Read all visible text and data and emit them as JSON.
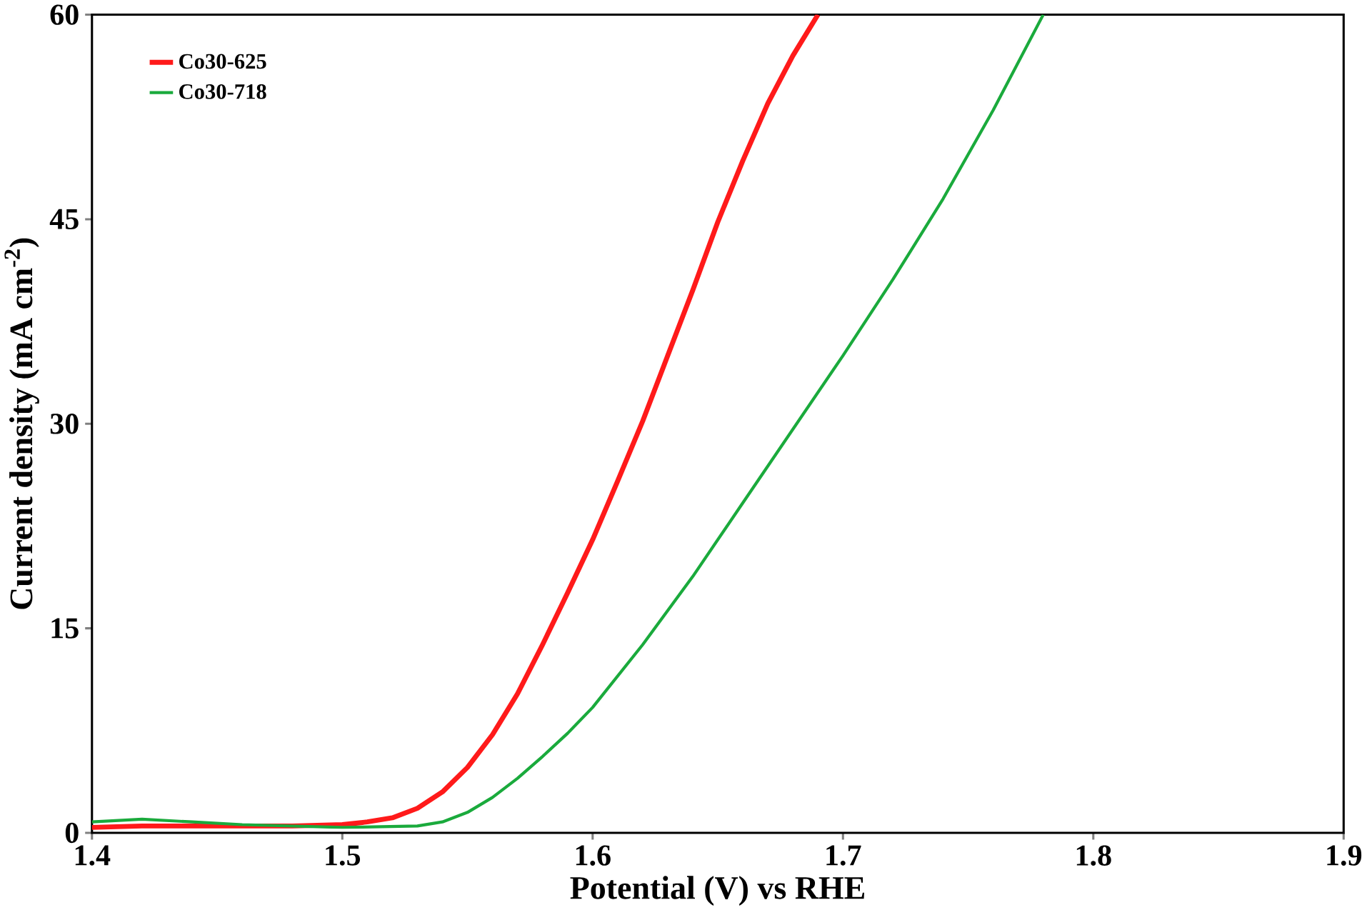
{
  "chart_data": {
    "type": "line",
    "xlabel": "Potential (V) vs RHE",
    "ylabel": "Current density (mA cm$^{-2}$)",
    "xlim": [
      1.4,
      1.9
    ],
    "ylim": [
      0,
      60
    ],
    "xticks": [
      1.4,
      1.5,
      1.6,
      1.7,
      1.8,
      1.9
    ],
    "yticks": [
      0,
      15,
      30,
      45,
      60
    ],
    "grid": false,
    "legend": "top left",
    "marker": "none",
    "line_style": "solid",
    "series": [
      {
        "name": "Co30-625",
        "color": "#ff1a1a",
        "x": [
          1.4,
          1.42,
          1.45,
          1.48,
          1.5,
          1.51,
          1.52,
          1.53,
          1.54,
          1.55,
          1.56,
          1.57,
          1.58,
          1.59,
          1.6,
          1.61,
          1.62,
          1.63,
          1.64,
          1.65,
          1.66,
          1.67,
          1.68,
          1.69
        ],
        "values": [
          0.4,
          0.5,
          0.5,
          0.5,
          0.6,
          0.8,
          1.1,
          1.8,
          3.0,
          4.8,
          7.2,
          10.2,
          13.8,
          17.6,
          21.5,
          25.8,
          30.2,
          35.0,
          39.8,
          44.8,
          49.3,
          53.5,
          57.0,
          60.0
        ]
      },
      {
        "name": "Co30-718",
        "color": "#1aaa3c",
        "x": [
          1.4,
          1.42,
          1.44,
          1.46,
          1.5,
          1.53,
          1.54,
          1.55,
          1.56,
          1.57,
          1.58,
          1.59,
          1.6,
          1.62,
          1.64,
          1.66,
          1.68,
          1.7,
          1.72,
          1.74,
          1.76,
          1.78
        ],
        "values": [
          0.8,
          1.0,
          0.8,
          0.6,
          0.4,
          0.5,
          0.8,
          1.5,
          2.6,
          4.0,
          5.6,
          7.3,
          9.2,
          13.8,
          18.8,
          24.2,
          29.6,
          35.0,
          40.6,
          46.5,
          53.0,
          60.0
        ]
      }
    ]
  }
}
